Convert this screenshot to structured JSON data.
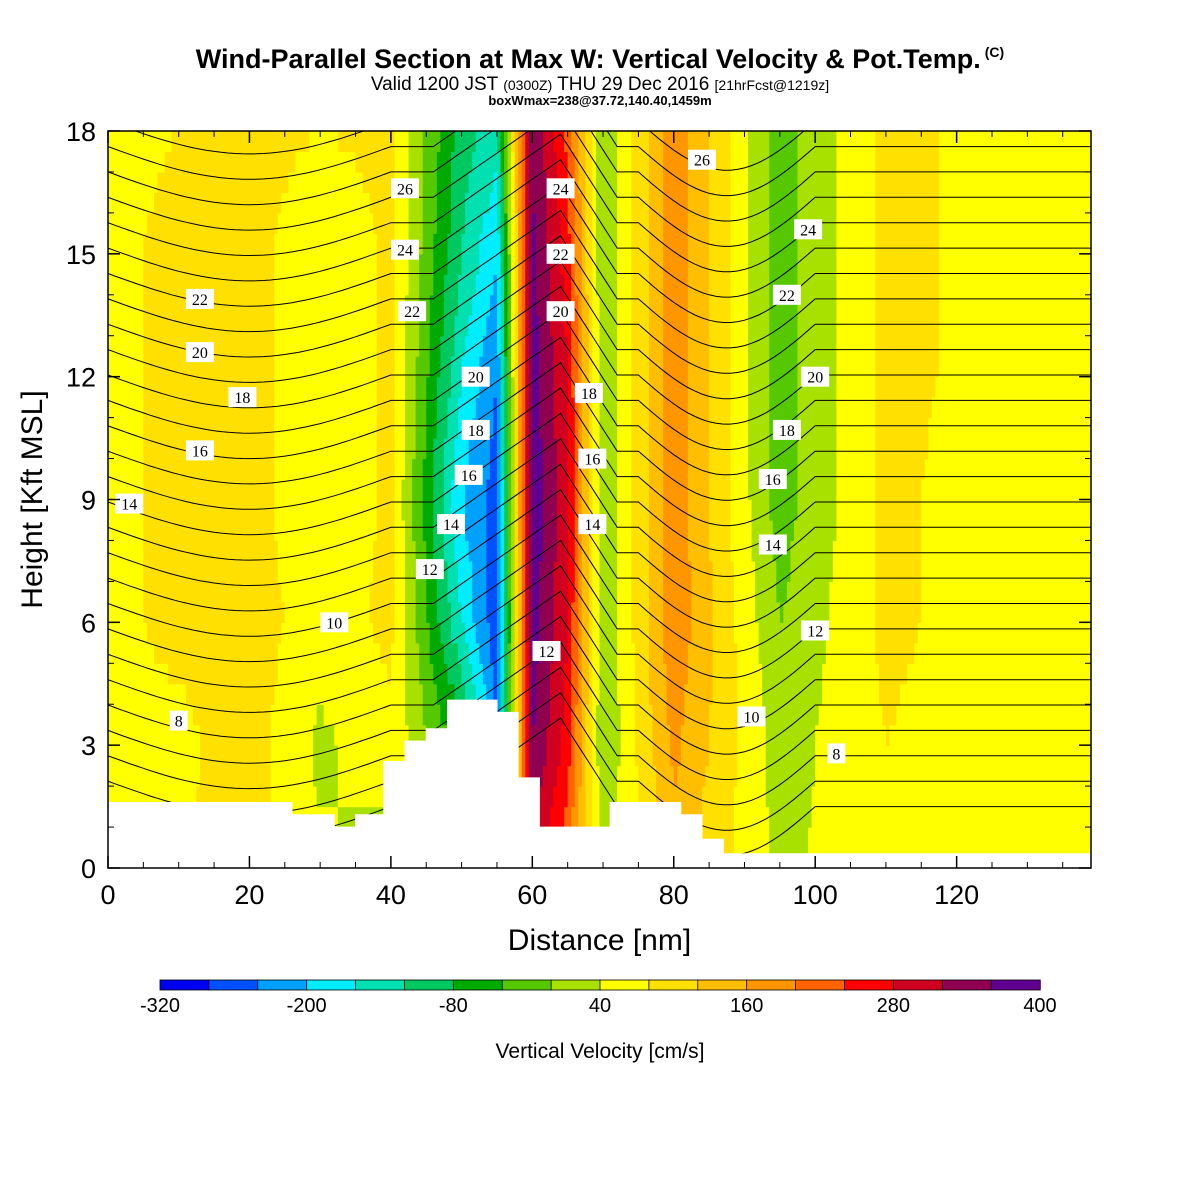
{
  "header": {
    "title": "Wind-Parallel Section at Max W: Vertical Velocity & Pot.Temp.",
    "copyright": "(C)",
    "valid_prefix": "Valid 1200 JST",
    "valid_utc": "(0300Z)",
    "valid_date": "THU 29 Dec 2016",
    "forecast": "[21hrFcst@1219z]",
    "box_info": "boxWmax=238@37.72,140.40,1459m"
  },
  "chart_data": {
    "type": "heatmap",
    "xlabel": "Distance [nm]",
    "ylabel": "Height [Kft MSL]",
    "xlim": [
      0,
      139
    ],
    "ylim": [
      0,
      18
    ],
    "x_ticks": [
      "0",
      "20",
      "40",
      "60",
      "80",
      "100",
      "120"
    ],
    "x_tick_values": [
      0,
      20,
      40,
      60,
      80,
      100,
      120
    ],
    "y_ticks": [
      "0",
      "3",
      "6",
      "9",
      "12",
      "15",
      "18"
    ],
    "y_tick_values": [
      0,
      3,
      6,
      9,
      12,
      15,
      18
    ],
    "colorbar": {
      "title": "Vertical Velocity [cm/s]",
      "tick_labels": [
        "-320",
        "-200",
        "-80",
        "40",
        "160",
        "280",
        "400"
      ],
      "colors": [
        "#0000f0",
        "#0050ff",
        "#00a0ff",
        "#00ecff",
        "#00e0b0",
        "#00c860",
        "#00aa00",
        "#55c800",
        "#a8e000",
        "#ffff00",
        "#ffe000",
        "#ffbe00",
        "#ff9600",
        "#ff6400",
        "#ff0000",
        "#d00020",
        "#900050",
        "#600090"
      ]
    },
    "terrain": [
      [
        0,
        1.6
      ],
      [
        26,
        1.6
      ],
      [
        26,
        1.3
      ],
      [
        32,
        1.3
      ],
      [
        32,
        1.0
      ],
      [
        35,
        1.0
      ],
      [
        35,
        1.3
      ],
      [
        39,
        1.3
      ],
      [
        39,
        2.6
      ],
      [
        42,
        2.6
      ],
      [
        42,
        3.1
      ],
      [
        45,
        3.1
      ],
      [
        45,
        3.4
      ],
      [
        48,
        3.4
      ],
      [
        48,
        4.1
      ],
      [
        55,
        4.1
      ],
      [
        55,
        3.8
      ],
      [
        58,
        3.8
      ],
      [
        58,
        2.2
      ],
      [
        61,
        2.2
      ],
      [
        61,
        1.0
      ],
      [
        71,
        1.0
      ],
      [
        71,
        1.6
      ],
      [
        81,
        1.6
      ],
      [
        81,
        1.3
      ],
      [
        84,
        1.3
      ],
      [
        84,
        0.7
      ],
      [
        87,
        0.7
      ],
      [
        87,
        0.35
      ],
      [
        139,
        0.35
      ]
    ],
    "w_field": [
      {
        "x": 0,
        "h": [
          20,
          10,
          10,
          10,
          10,
          10,
          10
        ]
      },
      {
        "x": 10,
        "h": [
          20,
          10,
          30,
          30,
          30,
          30,
          20
        ]
      },
      {
        "x": 20,
        "h": [
          30,
          40,
          40,
          40,
          40,
          40,
          40
        ]
      },
      {
        "x": 30,
        "h": [
          -10,
          -30,
          0,
          -20,
          -20,
          -20,
          20
        ]
      },
      {
        "x": 40,
        "h": [
          -50,
          10,
          30,
          30,
          30,
          30,
          30
        ]
      },
      {
        "x": 50,
        "h": [
          -100,
          -120,
          -220,
          -260,
          -220,
          -180,
          -160
        ]
      },
      {
        "x": 55,
        "h": [
          -200,
          -300,
          -330,
          -320,
          -300,
          -260,
          -200
        ]
      },
      {
        "x": 60,
        "h": [
          260,
          300,
          320,
          330,
          320,
          310,
          300
        ]
      },
      {
        "x": 65,
        "h": [
          150,
          200,
          220,
          230,
          220,
          200,
          170
        ]
      },
      {
        "x": 70,
        "h": [
          -40,
          -60,
          -60,
          -60,
          -60,
          -60,
          -60
        ]
      },
      {
        "x": 80,
        "h": [
          80,
          110,
          130,
          130,
          130,
          130,
          130
        ]
      },
      {
        "x": 95,
        "h": [
          -30,
          -40,
          -60,
          -80,
          -80,
          -80,
          -80
        ]
      },
      {
        "x": 110,
        "h": [
          10,
          20,
          30,
          30,
          30,
          30,
          30
        ]
      },
      {
        "x": 125,
        "h": [
          -20,
          -10,
          0,
          0,
          10,
          10,
          10
        ]
      }
    ],
    "theta_contours": {
      "interval": 1,
      "labels": [
        {
          "text": "26",
          "x": 42,
          "y": 16.6
        },
        {
          "text": "24",
          "x": 42,
          "y": 15.1
        },
        {
          "text": "22",
          "x": 13,
          "y": 13.9
        },
        {
          "text": "22",
          "x": 43,
          "y": 13.6
        },
        {
          "text": "20",
          "x": 13,
          "y": 12.6
        },
        {
          "text": "18",
          "x": 19,
          "y": 11.5
        },
        {
          "text": "16",
          "x": 13,
          "y": 10.2
        },
        {
          "text": "14",
          "x": 3,
          "y": 8.9
        },
        {
          "text": "10",
          "x": 32,
          "y": 6.0
        },
        {
          "text": "8",
          "x": 10,
          "y": 3.6
        },
        {
          "text": "20",
          "x": 52,
          "y": 12.0
        },
        {
          "text": "18",
          "x": 52,
          "y": 10.7
        },
        {
          "text": "16",
          "x": 51,
          "y": 9.6
        },
        {
          "text": "14",
          "x": 48.5,
          "y": 8.4
        },
        {
          "text": "12",
          "x": 45.5,
          "y": 7.3
        },
        {
          "text": "24",
          "x": 64,
          "y": 16.6
        },
        {
          "text": "22",
          "x": 64,
          "y": 15.0
        },
        {
          "text": "20",
          "x": 64,
          "y": 13.6
        },
        {
          "text": "18",
          "x": 68,
          "y": 11.6
        },
        {
          "text": "16",
          "x": 68.5,
          "y": 10.0
        },
        {
          "text": "14",
          "x": 68.5,
          "y": 8.4
        },
        {
          "text": "12",
          "x": 62,
          "y": 5.3
        },
        {
          "text": "26",
          "x": 84,
          "y": 17.3
        },
        {
          "text": "24",
          "x": 99,
          "y": 15.6
        },
        {
          "text": "22",
          "x": 96,
          "y": 14.0
        },
        {
          "text": "20",
          "x": 100,
          "y": 12.0
        },
        {
          "text": "18",
          "x": 96,
          "y": 10.7
        },
        {
          "text": "16",
          "x": 94,
          "y": 9.5
        },
        {
          "text": "14",
          "x": 94,
          "y": 7.9
        },
        {
          "text": "12",
          "x": 100,
          "y": 5.8
        },
        {
          "text": "10",
          "x": 91,
          "y": 3.7
        },
        {
          "text": "8",
          "x": 103,
          "y": 2.8
        }
      ]
    }
  }
}
